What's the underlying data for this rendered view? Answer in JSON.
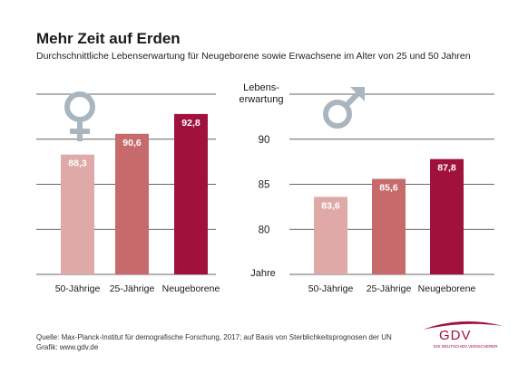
{
  "header": {
    "title": "Mehr Zeit auf Erden",
    "subtitle": "Durchschnittliche Lebenserwartung für Neugeborene sowie Erwachsene im Alter von 25 und 50 Jahren"
  },
  "footer": {
    "source": "Quelle: Max-Planck-Institut für demografische Forschung, 2017; auf Basis von Sterblichkeitsprognosen der UN",
    "credit": "Grafik: www.gdv.de"
  },
  "logo": {
    "text": "GDV",
    "subtext": "DIE DEUTSCHEN VERSICHERER",
    "color": "#a0113c"
  },
  "colors": {
    "bar_light": "#dfa9a8",
    "bar_mid": "#c66a6c",
    "bar_dark": "#a0113c",
    "grid": "#333333",
    "symbol": "#aab6bf"
  },
  "chart_data": [
    {
      "type": "bar",
      "symbol": "female-symbol",
      "categories": [
        "50-Jährige",
        "25-Jährige",
        "Neugeborene"
      ],
      "values": [
        88.3,
        90.6,
        92.8
      ],
      "data_labels": [
        "88,3",
        "90,6",
        "92,8"
      ],
      "ylim": [
        75,
        95
      ],
      "grid": true
    },
    {
      "type": "bar",
      "symbol": "male-symbol",
      "categories": [
        "50-Jährige",
        "25-Jährige",
        "Neugeborene"
      ],
      "values": [
        83.6,
        85.6,
        87.8
      ],
      "data_labels": [
        "83,6",
        "85,6",
        "87,8"
      ],
      "ylim": [
        75,
        95
      ],
      "grid": true
    }
  ],
  "axis": {
    "label_top_1": "Lebens-",
    "label_top_2": "erwartung",
    "ticks": [
      90,
      85,
      80
    ],
    "label_bottom": "Jahre"
  }
}
